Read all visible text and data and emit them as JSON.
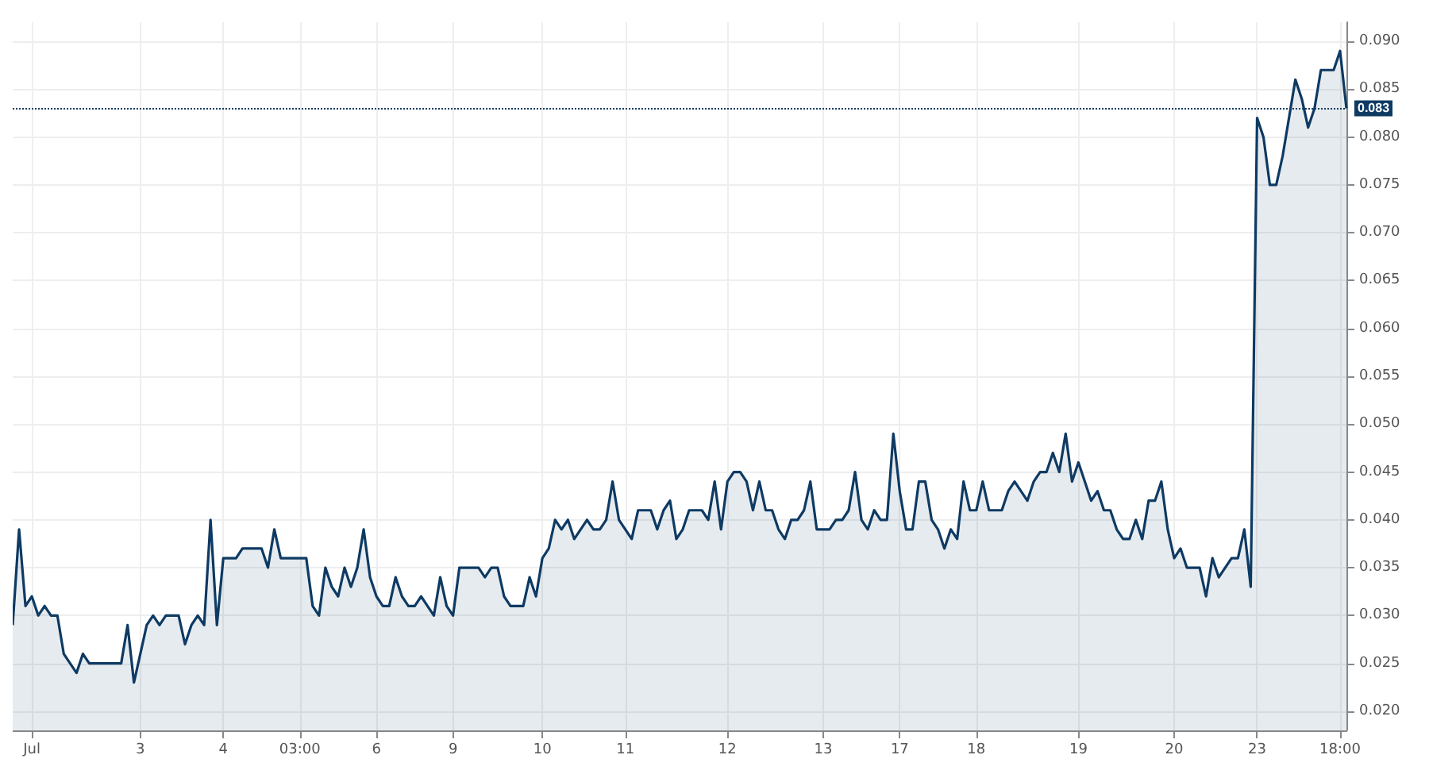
{
  "chart_data": {
    "type": "area",
    "categories": [
      null,
      null,
      null,
      "Jul",
      null,
      null,
      null,
      null,
      null,
      null,
      null,
      null,
      null,
      null,
      null,
      null,
      null,
      null,
      null,
      null,
      "3",
      null,
      null,
      null,
      null,
      null,
      null,
      null,
      null,
      null,
      null,
      null,
      null,
      "4",
      null,
      null,
      null,
      null,
      null,
      null,
      null,
      null,
      null,
      null,
      null,
      "03:00",
      null,
      null,
      null,
      null,
      null,
      null,
      null,
      null,
      null,
      null,
      null,
      "6",
      null,
      null,
      null,
      null,
      null,
      null,
      null,
      null,
      null,
      null,
      null,
      "9",
      null,
      null,
      null,
      null,
      null,
      null,
      null,
      null,
      null,
      null,
      null,
      null,
      null,
      "10",
      null,
      null,
      null,
      null,
      null,
      null,
      null,
      null,
      null,
      null,
      null,
      null,
      "11",
      null,
      null,
      null,
      null,
      null,
      null,
      null,
      null,
      null,
      null,
      null,
      null,
      null,
      null,
      null,
      "12",
      null,
      null,
      null,
      null,
      null,
      null,
      null,
      null,
      null,
      null,
      null,
      null,
      null,
      null,
      "13",
      null,
      null,
      null,
      null,
      null,
      null,
      null,
      null,
      null,
      null,
      null,
      "17",
      null,
      null,
      null,
      null,
      null,
      null,
      null,
      null,
      null,
      null,
      null,
      "18",
      null,
      null,
      null,
      null,
      null,
      null,
      null,
      null,
      null,
      null,
      null,
      null,
      null,
      null,
      null,
      "19",
      null,
      null,
      null,
      null,
      null,
      null,
      null,
      null,
      null,
      null,
      null,
      null,
      null,
      null,
      "20",
      null,
      null,
      null,
      null,
      null,
      null,
      null,
      null,
      null,
      null,
      null,
      null,
      "23",
      null,
      null,
      null,
      null,
      null,
      null,
      null,
      null,
      null,
      null,
      null,
      null,
      "18:00",
      null
    ],
    "series": [
      {
        "color": "#0e3a63",
        "values": [
          0.029,
          0.039,
          0.031,
          0.032,
          0.03,
          0.031,
          0.03,
          0.03,
          0.026,
          0.025,
          0.024,
          0.026,
          0.025,
          0.025,
          0.025,
          0.025,
          0.025,
          0.025,
          0.029,
          0.023,
          0.026,
          0.029,
          0.03,
          0.029,
          0.03,
          0.03,
          0.03,
          0.027,
          0.029,
          0.03,
          0.029,
          0.04,
          0.029,
          0.036,
          0.036,
          0.036,
          0.037,
          0.037,
          0.037,
          0.037,
          0.035,
          0.039,
          0.036,
          0.036,
          0.036,
          0.036,
          0.036,
          0.031,
          0.03,
          0.035,
          0.033,
          0.032,
          0.035,
          0.033,
          0.035,
          0.039,
          0.034,
          0.032,
          0.031,
          0.031,
          0.034,
          0.032,
          0.031,
          0.031,
          0.032,
          0.031,
          0.03,
          0.034,
          0.031,
          0.03,
          0.035,
          0.035,
          0.035,
          0.035,
          0.034,
          0.035,
          0.035,
          0.032,
          0.031,
          0.031,
          0.031,
          0.034,
          0.032,
          0.036,
          0.037,
          0.04,
          0.039,
          0.04,
          0.038,
          0.039,
          0.04,
          0.039,
          0.039,
          0.04,
          0.044,
          0.04,
          0.039,
          0.038,
          0.041,
          0.041,
          0.041,
          0.039,
          0.041,
          0.042,
          0.038,
          0.039,
          0.041,
          0.041,
          0.041,
          0.04,
          0.044,
          0.039,
          0.044,
          0.045,
          0.045,
          0.044,
          0.041,
          0.044,
          0.041,
          0.041,
          0.039,
          0.038,
          0.04,
          0.04,
          0.041,
          0.044,
          0.039,
          0.039,
          0.039,
          0.04,
          0.04,
          0.041,
          0.045,
          0.04,
          0.039,
          0.041,
          0.04,
          0.04,
          0.049,
          0.043,
          0.039,
          0.039,
          0.044,
          0.044,
          0.04,
          0.039,
          0.037,
          0.039,
          0.038,
          0.044,
          0.041,
          0.041,
          0.044,
          0.041,
          0.041,
          0.041,
          0.043,
          0.044,
          0.043,
          0.042,
          0.044,
          0.045,
          0.045,
          0.047,
          0.045,
          0.049,
          0.044,
          0.046,
          0.044,
          0.042,
          0.043,
          0.041,
          0.041,
          0.039,
          0.038,
          0.038,
          0.04,
          0.038,
          0.042,
          0.042,
          0.044,
          0.039,
          0.036,
          0.037,
          0.035,
          0.035,
          0.035,
          0.032,
          0.036,
          0.034,
          0.035,
          0.036,
          0.036,
          0.039,
          0.033,
          0.082,
          0.08,
          0.075,
          0.075,
          0.078,
          0.082,
          0.086,
          0.084,
          0.081,
          0.083,
          0.087,
          0.087,
          0.087,
          0.089,
          0.083
        ]
      }
    ],
    "ylim": [
      0.018,
      0.092
    ],
    "yticks": [
      {
        "value": 0.02,
        "label": "0.020"
      },
      {
        "value": 0.025,
        "label": "0.025"
      },
      {
        "value": 0.03,
        "label": "0.030"
      },
      {
        "value": 0.035,
        "label": "0.035"
      },
      {
        "value": 0.04,
        "label": "0.040"
      },
      {
        "value": 0.045,
        "label": "0.045"
      },
      {
        "value": 0.05,
        "label": "0.050"
      },
      {
        "value": 0.055,
        "label": "0.055"
      },
      {
        "value": 0.06,
        "label": "0.060"
      },
      {
        "value": 0.065,
        "label": "0.065"
      },
      {
        "value": 0.07,
        "label": "0.070"
      },
      {
        "value": 0.075,
        "label": "0.075"
      },
      {
        "value": 0.08,
        "label": "0.080"
      },
      {
        "value": 0.085,
        "label": "0.085"
      },
      {
        "value": 0.09,
        "label": "0.090"
      }
    ],
    "ref_lines": [
      {
        "axis": "y",
        "value": 0.083,
        "label": "0.083",
        "color": "#0e3a63",
        "line_style": "dotted"
      }
    ],
    "grid": true,
    "marker": "none"
  }
}
